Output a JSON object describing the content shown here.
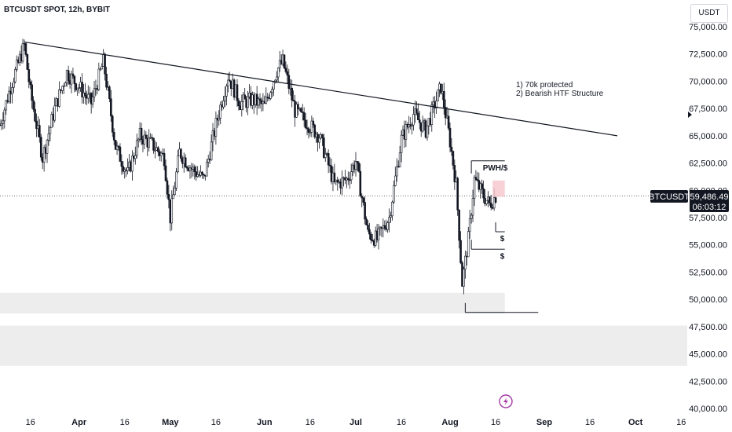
{
  "header": {
    "title": "BTCUSDT SPOT, 12h, BYBIT",
    "currency_button": "USDT"
  },
  "annotations": {
    "note_line1": "1) 70k protected",
    "note_line2": "2) Bearish HTF Structure",
    "pwh_label": "PWH/$",
    "liquidity_label_1": "$",
    "liquidity_label_2": "$"
  },
  "price_tag": {
    "symbol": "BTCUSDT",
    "price": "59,486.49",
    "countdown": "06:03:12"
  },
  "colors": {
    "candle": "#131722",
    "zone": "#ededed",
    "tag_bg": "#131722",
    "highlight": "#f5c6cb",
    "bolt_icon": "#a53aa6"
  },
  "icons": {
    "bolt": "lightning-bolt-icon",
    "axis_marker": "triangle-right-icon"
  },
  "chart_data": {
    "type": "candlestick",
    "title": "BTCUSDT SPOT, 12h, BYBIT",
    "y_ticks": [
      75000,
      72500,
      70000,
      67500,
      65000,
      62500,
      60000,
      57500,
      55000,
      52500,
      50000,
      47500,
      45000,
      42500,
      40000
    ],
    "y_tick_labels": [
      "75,000.00",
      "72,500.00",
      "70,000.00",
      "67,500.00",
      "65,000.00",
      "62,500.00",
      "60,000.00",
      "57,500.00",
      "55,000.00",
      "52,500.00",
      "50,000.00",
      "47,500.00",
      "45,000.00",
      "42,500.00",
      "40,000.00"
    ],
    "x_tick_labels": [
      {
        "label": "16",
        "bold": false,
        "date": "2024-03-16"
      },
      {
        "label": "Apr",
        "bold": true,
        "date": "2024-04-01"
      },
      {
        "label": "16",
        "bold": false,
        "date": "2024-04-16"
      },
      {
        "label": "May",
        "bold": true,
        "date": "2024-05-01"
      },
      {
        "label": "16",
        "bold": false,
        "date": "2024-05-16"
      },
      {
        "label": "Jun",
        "bold": true,
        "date": "2024-06-01"
      },
      {
        "label": "16",
        "bold": false,
        "date": "2024-06-16"
      },
      {
        "label": "Jul",
        "bold": true,
        "date": "2024-07-01"
      },
      {
        "label": "16",
        "bold": false,
        "date": "2024-07-16"
      },
      {
        "label": "Aug",
        "bold": true,
        "date": "2024-08-01"
      },
      {
        "label": "16",
        "bold": false,
        "date": "2024-08-16"
      },
      {
        "label": "Sep",
        "bold": true,
        "date": "2024-09-01"
      },
      {
        "label": "16",
        "bold": false,
        "date": "2024-09-16"
      },
      {
        "label": "Oct",
        "bold": true,
        "date": "2024-10-01"
      },
      {
        "label": "16",
        "bold": false,
        "date": "2024-10-16"
      }
    ],
    "ylim": [
      40000,
      76000
    ],
    "xlim": [
      "2024-03-06",
      "2024-10-18"
    ],
    "current_price": 59486.49,
    "price_points": [
      {
        "date": "2024-03-06",
        "close": 66000
      },
      {
        "date": "2024-03-10",
        "close": 70000
      },
      {
        "date": "2024-03-14",
        "close": 73300
      },
      {
        "date": "2024-03-16",
        "close": 69000
      },
      {
        "date": "2024-03-20",
        "close": 63000
      },
      {
        "date": "2024-03-24",
        "close": 67500
      },
      {
        "date": "2024-03-28",
        "close": 70800
      },
      {
        "date": "2024-04-01",
        "close": 69500
      },
      {
        "date": "2024-04-05",
        "close": 68000
      },
      {
        "date": "2024-04-09",
        "close": 71800
      },
      {
        "date": "2024-04-13",
        "close": 64000
      },
      {
        "date": "2024-04-17",
        "close": 61500
      },
      {
        "date": "2024-04-21",
        "close": 65000
      },
      {
        "date": "2024-04-25",
        "close": 64200
      },
      {
        "date": "2024-04-29",
        "close": 63000
      },
      {
        "date": "2024-05-01",
        "close": 57500
      },
      {
        "date": "2024-05-04",
        "close": 63500
      },
      {
        "date": "2024-05-08",
        "close": 62000
      },
      {
        "date": "2024-05-12",
        "close": 61000
      },
      {
        "date": "2024-05-16",
        "close": 66000
      },
      {
        "date": "2024-05-20",
        "close": 70500
      },
      {
        "date": "2024-05-24",
        "close": 68000
      },
      {
        "date": "2024-05-28",
        "close": 68300
      },
      {
        "date": "2024-06-01",
        "close": 67700
      },
      {
        "date": "2024-06-05",
        "close": 71000
      },
      {
        "date": "2024-06-07",
        "close": 71800
      },
      {
        "date": "2024-06-11",
        "close": 67300
      },
      {
        "date": "2024-06-15",
        "close": 66200
      },
      {
        "date": "2024-06-19",
        "close": 65000
      },
      {
        "date": "2024-06-24",
        "close": 60500
      },
      {
        "date": "2024-06-28",
        "close": 61000
      },
      {
        "date": "2024-07-01",
        "close": 62700
      },
      {
        "date": "2024-07-05",
        "close": 56000
      },
      {
        "date": "2024-07-08",
        "close": 55500
      },
      {
        "date": "2024-07-12",
        "close": 57500
      },
      {
        "date": "2024-07-16",
        "close": 64700
      },
      {
        "date": "2024-07-20",
        "close": 67000
      },
      {
        "date": "2024-07-24",
        "close": 65500
      },
      {
        "date": "2024-07-29",
        "close": 69500
      },
      {
        "date": "2024-08-01",
        "close": 64500
      },
      {
        "date": "2024-08-03",
        "close": 60500
      },
      {
        "date": "2024-08-05",
        "close": 51500
      },
      {
        "date": "2024-08-07",
        "close": 55500
      },
      {
        "date": "2024-08-09",
        "close": 61000
      },
      {
        "date": "2024-08-12",
        "close": 59500
      },
      {
        "date": "2024-08-14",
        "close": 58700
      },
      {
        "date": "2024-08-16",
        "close": 59486.49
      }
    ],
    "trendline": {
      "from": {
        "date": "2024-03-14",
        "price": 73600
      },
      "to": {
        "date": "2024-09-25",
        "price": 65000
      }
    },
    "pwh_level": {
      "price": 62700,
      "from": "2024-08-08",
      "to": "2024-08-19"
    },
    "liquidity_levels": [
      {
        "price": 56200,
        "from": "2024-08-16",
        "to": "2024-08-19"
      },
      {
        "price": 54600,
        "from": "2024-08-08",
        "to": "2024-08-19"
      },
      {
        "price": 48800,
        "from": "2024-08-06",
        "to": "2024-08-30"
      }
    ],
    "zones": [
      {
        "from_price": 48700,
        "to_price": 50600,
        "from": "2024-03-06",
        "to": "2024-08-19"
      },
      {
        "from_price": 43900,
        "to_price": 47600,
        "from": "2024-03-06",
        "to": "2024-10-18"
      }
    ]
  }
}
